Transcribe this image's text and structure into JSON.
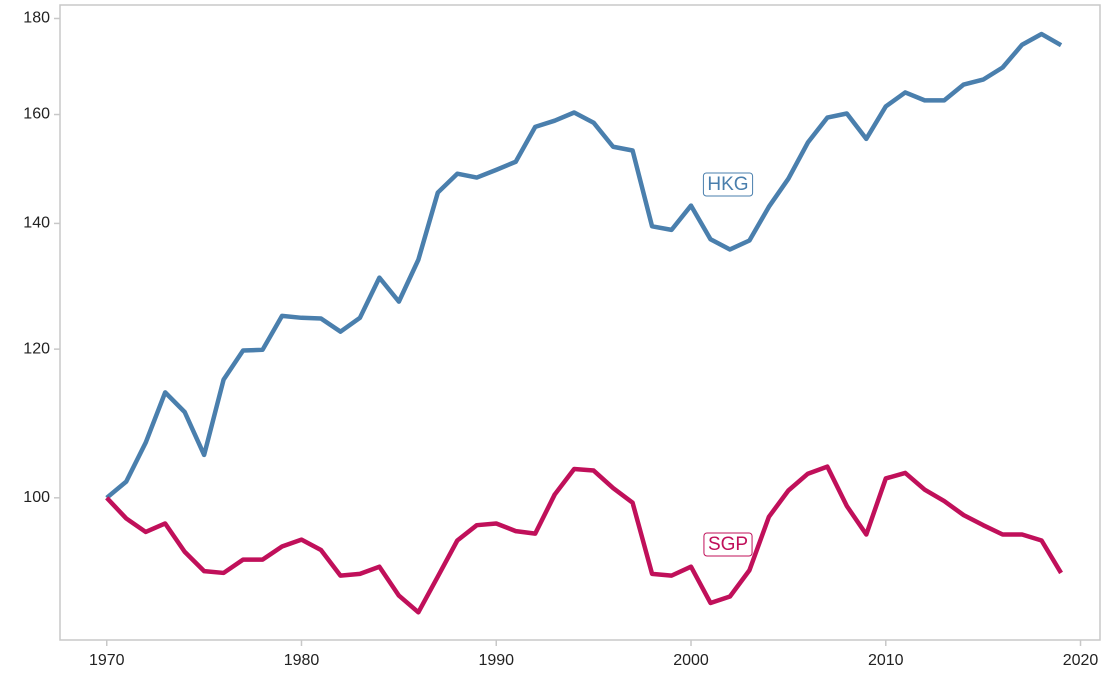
{
  "chart_data": {
    "type": "line",
    "log_y": true,
    "x": [
      1970,
      1971,
      1972,
      1973,
      1974,
      1975,
      1976,
      1977,
      1978,
      1979,
      1980,
      1981,
      1982,
      1983,
      1984,
      1985,
      1986,
      1987,
      1988,
      1989,
      1990,
      1991,
      1992,
      1993,
      1994,
      1995,
      1996,
      1997,
      1998,
      1999,
      2000,
      2001,
      2002,
      2003,
      2004,
      2005,
      2006,
      2007,
      2008,
      2009,
      2010,
      2011,
      2012,
      2013,
      2014,
      2015,
      2016,
      2017,
      2018,
      2019
    ],
    "series": [
      {
        "name": "HKG",
        "color": "#4a7fad",
        "values": [
          100,
          102.0,
          107.0,
          113.8,
          111.1,
          105.4,
          115.6,
          119.8,
          119.9,
          125.0,
          124.7,
          124.6,
          122.6,
          124.7,
          131.0,
          127.2,
          133.9,
          145.4,
          148.8,
          148.1,
          149.5,
          151.0,
          157.6,
          158.8,
          160.4,
          158.4,
          153.8,
          153.1,
          139.5,
          138.9,
          143.1,
          137.3,
          135.6,
          137.1,
          142.9,
          147.9,
          154.6,
          159.4,
          160.2,
          155.3,
          161.6,
          164.4,
          162.8,
          162.8,
          166.0,
          167.0,
          169.5,
          174.3,
          176.6,
          174.2
        ]
      },
      {
        "name": "SGP",
        "color": "#c0105a",
        "values": [
          100,
          97.5,
          95.9,
          96.9,
          93.6,
          91.4,
          91.2,
          92.7,
          92.7,
          94.2,
          95.0,
          93.8,
          90.9,
          91.1,
          91.9,
          88.7,
          86.9,
          90.8,
          94.9,
          96.7,
          96.9,
          96.0,
          95.7,
          100.4,
          103.6,
          103.4,
          101.2,
          99.4,
          91.1,
          90.9,
          91.9,
          87.9,
          88.6,
          91.5,
          97.7,
          100.9,
          103.0,
          103.9,
          99.0,
          95.6,
          102.4,
          103.1,
          101.0,
          99.6,
          97.9,
          96.7,
          95.6,
          95.6,
          94.9,
          91.2
        ]
      }
    ],
    "xlim": [
      1967.6,
      2021
    ],
    "xticks": [
      1970,
      1980,
      1990,
      2000,
      2010,
      2020
    ],
    "ylim": [
      84,
      183
    ],
    "yticks": [
      100,
      120,
      140,
      160,
      180
    ]
  }
}
